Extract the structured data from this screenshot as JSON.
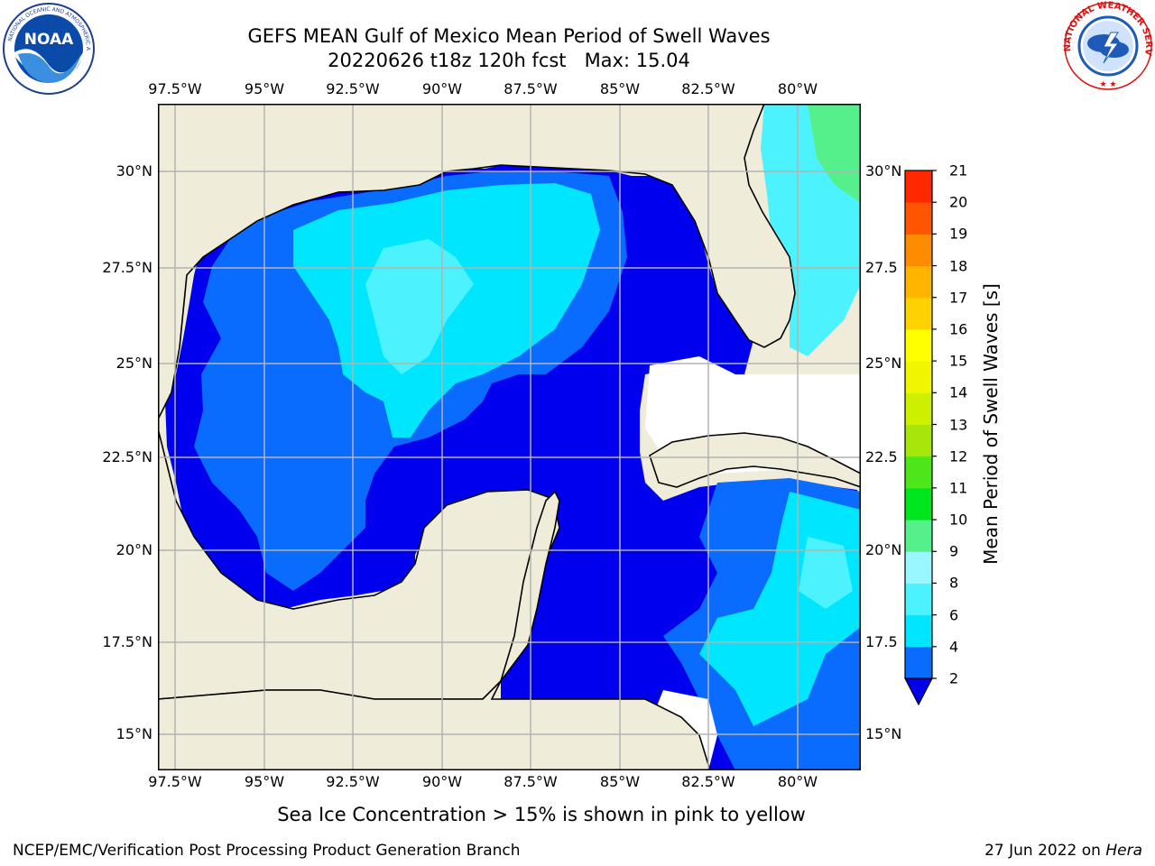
{
  "title_line1": "GEFS MEAN Gulf of Mexico Mean Period of Swell Waves",
  "title_line2": "20220626 t18z 120h fcst   Max: 15.04",
  "lon_labels": [
    "97.5°W",
    "95°W",
    "92.5°W",
    "90°W",
    "87.5°W",
    "85°W",
    "82.5°W",
    "80°W"
  ],
  "lat_labels_left": [
    "30°N",
    "27.5°N",
    "25°N",
    "22.5°N",
    "20°N",
    "17.5°N",
    "15°N"
  ],
  "lat_labels_right": [
    "30°N",
    "27.5",
    "25°N",
    "22.5",
    "20°N",
    "17.5",
    "15°N"
  ],
  "colorbar": {
    "label": "Mean Period of Swell Waves [s]",
    "ticks": [
      "2",
      "4",
      "6",
      "8",
      "9",
      "10",
      "11",
      "12",
      "13",
      "14",
      "15",
      "16",
      "17",
      "18",
      "19",
      "20",
      "21"
    ],
    "bins": [
      {
        "from": 2,
        "to": 4,
        "color": "#0a6cff"
      },
      {
        "from": 4,
        "to": 6,
        "color": "#00e6ff"
      },
      {
        "from": 6,
        "to": 8,
        "color": "#4df2ff"
      },
      {
        "from": 8,
        "to": 9,
        "color": "#99f7ff"
      },
      {
        "from": 9,
        "to": 10,
        "color": "#55f08c"
      },
      {
        "from": 10,
        "to": 11,
        "color": "#00e61e"
      },
      {
        "from": 11,
        "to": 12,
        "color": "#4ce61a"
      },
      {
        "from": 12,
        "to": 13,
        "color": "#a6e60a"
      },
      {
        "from": 13,
        "to": 14,
        "color": "#ccf000"
      },
      {
        "from": 14,
        "to": 15,
        "color": "#f0f500"
      },
      {
        "from": 15,
        "to": 16,
        "color": "#ffff00"
      },
      {
        "from": 16,
        "to": 17,
        "color": "#ffd200"
      },
      {
        "from": 17,
        "to": 18,
        "color": "#ffb400"
      },
      {
        "from": 18,
        "to": 19,
        "color": "#ff8c00"
      },
      {
        "from": 19,
        "to": 20,
        "color": "#ff5500"
      },
      {
        "from": 20,
        "to": 21,
        "color": "#ff2800"
      }
    ],
    "under_color": "#0000ee",
    "top_color": "#ff0000"
  },
  "note": "Sea Ice Concentration > 15% is shown in pink to yellow",
  "credit": "NCEP/EMC/Verification Post Processing Product Generation Branch",
  "stamp_date": "27 Jun 2022 on ",
  "stamp_host": "Hera",
  "logos": {
    "left": "NOAA",
    "right": "NATIONAL WEATHER SERVICE"
  },
  "colors": {
    "land": "#efedd9",
    "deep_blue": "#0000ee",
    "mid_blue": "#0a6cff",
    "cyan": "#00e6ff",
    "light_cyan": "#4df2ff",
    "grid": "#b3b3b3"
  }
}
